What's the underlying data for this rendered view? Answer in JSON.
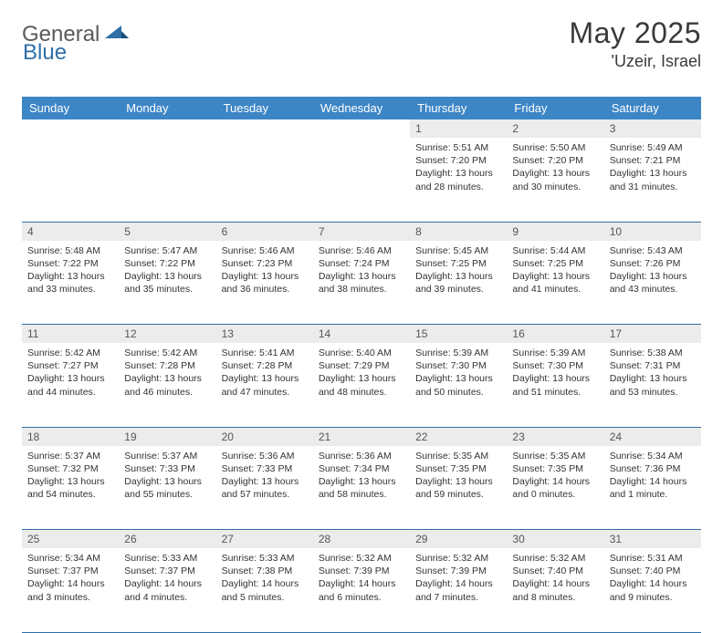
{
  "brand": {
    "part1": "General",
    "part2": "Blue"
  },
  "title": "May 2025",
  "location": "'Uzeir, Israel",
  "colors": {
    "header_bg": "#3d86c6",
    "header_text": "#ffffff",
    "daynum_bg": "#ececec",
    "cell_border": "#2f6fa8",
    "brand_blue": "#2f6fa8",
    "brand_gray": "#5a5a5a",
    "text": "#333333",
    "background": "#ffffff"
  },
  "day_headers": [
    "Sunday",
    "Monday",
    "Tuesday",
    "Wednesday",
    "Thursday",
    "Friday",
    "Saturday"
  ],
  "first_weekday": 4,
  "days": [
    {
      "n": 1,
      "sunrise": "5:51 AM",
      "sunset": "7:20 PM",
      "daylight": "13 hours and 28 minutes."
    },
    {
      "n": 2,
      "sunrise": "5:50 AM",
      "sunset": "7:20 PM",
      "daylight": "13 hours and 30 minutes."
    },
    {
      "n": 3,
      "sunrise": "5:49 AM",
      "sunset": "7:21 PM",
      "daylight": "13 hours and 31 minutes."
    },
    {
      "n": 4,
      "sunrise": "5:48 AM",
      "sunset": "7:22 PM",
      "daylight": "13 hours and 33 minutes."
    },
    {
      "n": 5,
      "sunrise": "5:47 AM",
      "sunset": "7:22 PM",
      "daylight": "13 hours and 35 minutes."
    },
    {
      "n": 6,
      "sunrise": "5:46 AM",
      "sunset": "7:23 PM",
      "daylight": "13 hours and 36 minutes."
    },
    {
      "n": 7,
      "sunrise": "5:46 AM",
      "sunset": "7:24 PM",
      "daylight": "13 hours and 38 minutes."
    },
    {
      "n": 8,
      "sunrise": "5:45 AM",
      "sunset": "7:25 PM",
      "daylight": "13 hours and 39 minutes."
    },
    {
      "n": 9,
      "sunrise": "5:44 AM",
      "sunset": "7:25 PM",
      "daylight": "13 hours and 41 minutes."
    },
    {
      "n": 10,
      "sunrise": "5:43 AM",
      "sunset": "7:26 PM",
      "daylight": "13 hours and 43 minutes."
    },
    {
      "n": 11,
      "sunrise": "5:42 AM",
      "sunset": "7:27 PM",
      "daylight": "13 hours and 44 minutes."
    },
    {
      "n": 12,
      "sunrise": "5:42 AM",
      "sunset": "7:28 PM",
      "daylight": "13 hours and 46 minutes."
    },
    {
      "n": 13,
      "sunrise": "5:41 AM",
      "sunset": "7:28 PM",
      "daylight": "13 hours and 47 minutes."
    },
    {
      "n": 14,
      "sunrise": "5:40 AM",
      "sunset": "7:29 PM",
      "daylight": "13 hours and 48 minutes."
    },
    {
      "n": 15,
      "sunrise": "5:39 AM",
      "sunset": "7:30 PM",
      "daylight": "13 hours and 50 minutes."
    },
    {
      "n": 16,
      "sunrise": "5:39 AM",
      "sunset": "7:30 PM",
      "daylight": "13 hours and 51 minutes."
    },
    {
      "n": 17,
      "sunrise": "5:38 AM",
      "sunset": "7:31 PM",
      "daylight": "13 hours and 53 minutes."
    },
    {
      "n": 18,
      "sunrise": "5:37 AM",
      "sunset": "7:32 PM",
      "daylight": "13 hours and 54 minutes."
    },
    {
      "n": 19,
      "sunrise": "5:37 AM",
      "sunset": "7:33 PM",
      "daylight": "13 hours and 55 minutes."
    },
    {
      "n": 20,
      "sunrise": "5:36 AM",
      "sunset": "7:33 PM",
      "daylight": "13 hours and 57 minutes."
    },
    {
      "n": 21,
      "sunrise": "5:36 AM",
      "sunset": "7:34 PM",
      "daylight": "13 hours and 58 minutes."
    },
    {
      "n": 22,
      "sunrise": "5:35 AM",
      "sunset": "7:35 PM",
      "daylight": "13 hours and 59 minutes."
    },
    {
      "n": 23,
      "sunrise": "5:35 AM",
      "sunset": "7:35 PM",
      "daylight": "14 hours and 0 minutes."
    },
    {
      "n": 24,
      "sunrise": "5:34 AM",
      "sunset": "7:36 PM",
      "daylight": "14 hours and 1 minute."
    },
    {
      "n": 25,
      "sunrise": "5:34 AM",
      "sunset": "7:37 PM",
      "daylight": "14 hours and 3 minutes."
    },
    {
      "n": 26,
      "sunrise": "5:33 AM",
      "sunset": "7:37 PM",
      "daylight": "14 hours and 4 minutes."
    },
    {
      "n": 27,
      "sunrise": "5:33 AM",
      "sunset": "7:38 PM",
      "daylight": "14 hours and 5 minutes."
    },
    {
      "n": 28,
      "sunrise": "5:32 AM",
      "sunset": "7:39 PM",
      "daylight": "14 hours and 6 minutes."
    },
    {
      "n": 29,
      "sunrise": "5:32 AM",
      "sunset": "7:39 PM",
      "daylight": "14 hours and 7 minutes."
    },
    {
      "n": 30,
      "sunrise": "5:32 AM",
      "sunset": "7:40 PM",
      "daylight": "14 hours and 8 minutes."
    },
    {
      "n": 31,
      "sunrise": "5:31 AM",
      "sunset": "7:40 PM",
      "daylight": "14 hours and 9 minutes."
    }
  ],
  "labels": {
    "sunrise": "Sunrise:",
    "sunset": "Sunset:",
    "daylight": "Daylight:"
  }
}
